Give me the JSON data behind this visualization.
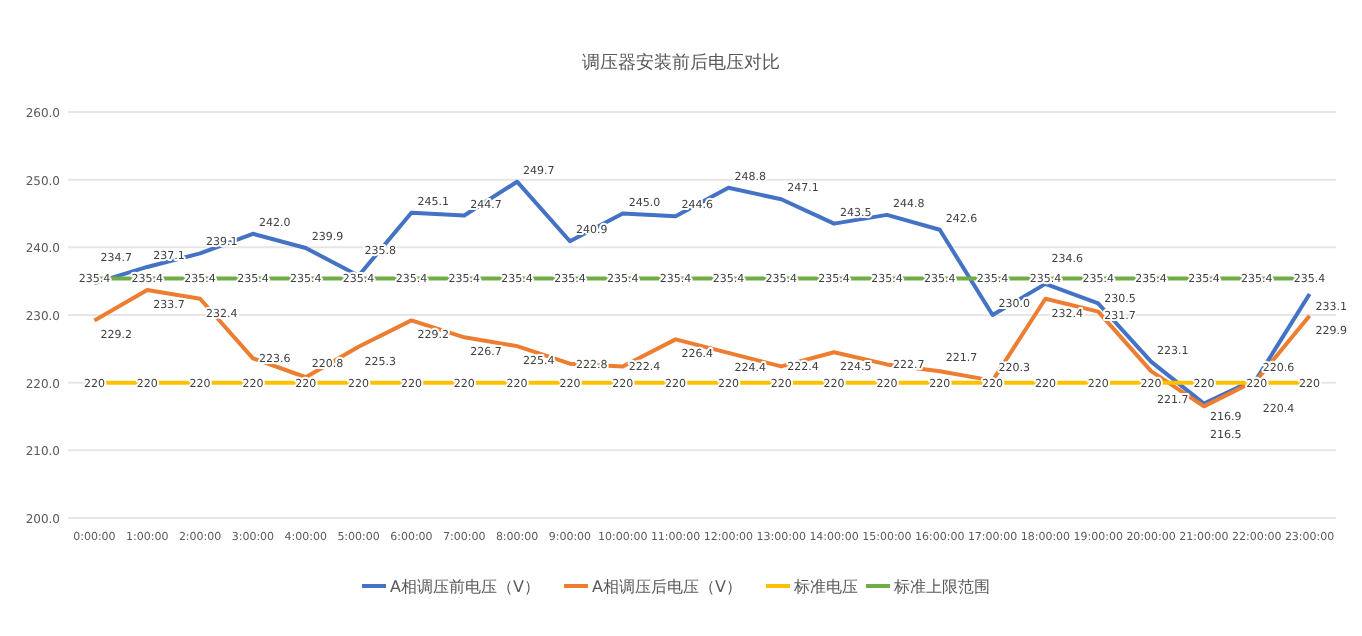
{
  "chart_data": {
    "type": "line",
    "title": "调压器安装前后电压对比",
    "categories": [
      "0:00:00",
      "1:00:00",
      "2:00:00",
      "3:00:00",
      "4:00:00",
      "5:00:00",
      "6:00:00",
      "7:00:00",
      "8:00:00",
      "9:00:00",
      "10:00:00",
      "11:00:00",
      "12:00:00",
      "13:00:00",
      "14:00:00",
      "15:00:00",
      "16:00:00",
      "17:00:00",
      "18:00:00",
      "19:00:00",
      "20:00:00",
      "21:00:00",
      "22:00:00",
      "23:00:00"
    ],
    "series": [
      {
        "name": "A相调压前电压（V）",
        "color": "#4472c4",
        "values": [
          234.7,
          237.1,
          239.1,
          242.0,
          239.9,
          235.8,
          245.1,
          244.7,
          249.7,
          240.9,
          245.0,
          244.6,
          248.8,
          247.1,
          243.5,
          244.8,
          242.6,
          230.0,
          234.6,
          231.7,
          223.1,
          216.9,
          220.6,
          233.1
        ],
        "value_labels": [
          "234.7",
          "237.1",
          "239.1",
          "242.0",
          "239.9",
          "235.8",
          "245.1",
          "244.7",
          "249.7",
          "240.9",
          "245.0",
          "244.6",
          "248.8",
          "247.1",
          "243.5",
          "244.8",
          "242.6",
          "230.0",
          "234.6",
          "231.7",
          "223.1",
          "216.9",
          "220.6",
          "233.1"
        ]
      },
      {
        "name": "A相调压后电压（V）",
        "color": "#ed7d31",
        "values": [
          229.2,
          233.7,
          232.4,
          223.6,
          220.8,
          225.3,
          229.2,
          226.7,
          225.4,
          222.8,
          222.4,
          226.4,
          224.4,
          222.4,
          224.5,
          222.7,
          221.7,
          220.3,
          232.4,
          230.5,
          221.7,
          216.5,
          220.4,
          229.9
        ],
        "value_labels": [
          "229.2",
          "233.7",
          "232.4",
          "223.6",
          "220.8",
          "225.3",
          "229.2",
          "226.7",
          "225.4",
          "222.8",
          "222.4",
          "226.4",
          "224.4",
          "222.4",
          "224.5",
          "222.7",
          "221.7",
          "220.3",
          "232.4",
          "230.5",
          "221.7",
          "216.5",
          "220.4",
          "229.9"
        ]
      },
      {
        "name": "标准电压",
        "color": "#ffc000",
        "values": [
          220,
          220,
          220,
          220,
          220,
          220,
          220,
          220,
          220,
          220,
          220,
          220,
          220,
          220,
          220,
          220,
          220,
          220,
          220,
          220,
          220,
          220,
          220,
          220
        ],
        "value_labels": [
          "220",
          "220",
          "220",
          "220",
          "220",
          "220",
          "220",
          "220",
          "220",
          "220",
          "220",
          "220",
          "220",
          "220",
          "220",
          "220",
          "220",
          "220",
          "220",
          "220",
          "220",
          "220",
          "220",
          "220"
        ]
      },
      {
        "name": "标准上限范围",
        "color": "#70ad47",
        "values": [
          235.4,
          235.4,
          235.4,
          235.4,
          235.4,
          235.4,
          235.4,
          235.4,
          235.4,
          235.4,
          235.4,
          235.4,
          235.4,
          235.4,
          235.4,
          235.4,
          235.4,
          235.4,
          235.4,
          235.4,
          235.4,
          235.4,
          235.4,
          235.4
        ],
        "value_labels": [
          "235.4",
          "235.4",
          "235.4",
          "235.4",
          "235.4",
          "235.4",
          "235.4",
          "235.4",
          "235.4",
          "235.4",
          "235.4",
          "235.4",
          "235.4",
          "235.4",
          "235.4",
          "235.4",
          "235.4",
          "235.4",
          "235.4",
          "235.4",
          "235.4",
          "235.4",
          "235.4",
          "235.4"
        ]
      }
    ],
    "ylim": [
      200,
      260
    ],
    "yticks": [
      {
        "value": 200,
        "label": "200.0"
      },
      {
        "value": 210,
        "label": "210.0"
      },
      {
        "value": 220,
        "label": "220.0"
      },
      {
        "value": 230,
        "label": "230.0"
      },
      {
        "value": 240,
        "label": "240.0"
      },
      {
        "value": 250,
        "label": "250.0"
      },
      {
        "value": 260,
        "label": "260.0"
      }
    ],
    "grid": "y",
    "legend": "bottom",
    "marker": "none",
    "line_style": "solid"
  }
}
